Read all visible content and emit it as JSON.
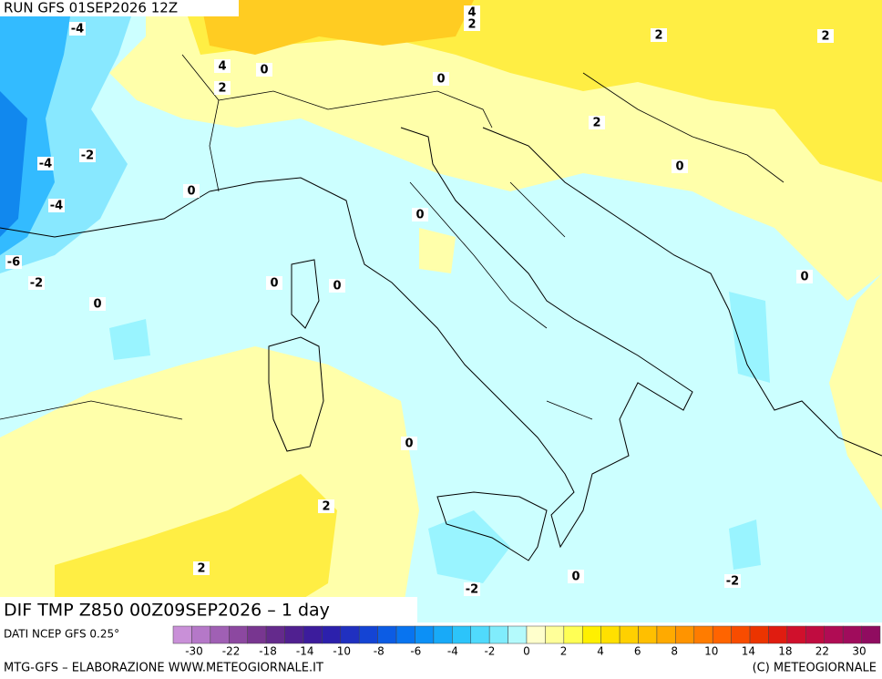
{
  "header": {
    "run": "RUN GFS 01SEP2026 12Z"
  },
  "map": {
    "contour_labels": [
      4,
      2,
      -4,
      2,
      2,
      4,
      0,
      2,
      0,
      2,
      -2,
      -4,
      0,
      0,
      -4,
      0,
      -6,
      -2,
      0,
      0,
      0,
      0,
      0,
      2,
      2,
      0,
      -2,
      -2
    ]
  },
  "title": "DIF TMP Z850 00Z09SEP2026 – 1 day",
  "source": "DATI NCEP GFS 0.25°",
  "colorbar": {
    "colors": [
      "#c990d8",
      "#b578c8",
      "#a060b4",
      "#8c48a0",
      "#783690",
      "#642a8c",
      "#502090",
      "#3c1c9c",
      "#2c20ac",
      "#2030c0",
      "#1444d4",
      "#0c5ce4",
      "#0874f0",
      "#0c90f6",
      "#18aaf8",
      "#2cc4fa",
      "#50dafc",
      "#80ecfc",
      "#b4fafc",
      "#ffffcc",
      "#ffff99",
      "#ffff55",
      "#fff000",
      "#ffe000",
      "#ffd000",
      "#ffbf00",
      "#ffaa00",
      "#ff9400",
      "#ff7c00",
      "#ff6400",
      "#f84c00",
      "#ec3400",
      "#e01c10",
      "#d0102c",
      "#c00c40",
      "#b00c54",
      "#a00c5c",
      "#900c60"
    ],
    "ticks": [
      -30,
      -22,
      -18,
      -14,
      -10,
      -8,
      -6,
      -4,
      -2,
      0,
      2,
      4,
      6,
      8,
      10,
      14,
      18,
      22,
      30
    ]
  },
  "footer": {
    "left": "MTG-GFS – ELABORAZIONE WWW.METEOGIORNALE.IT",
    "right": "(C) METEOGIORNALE"
  }
}
